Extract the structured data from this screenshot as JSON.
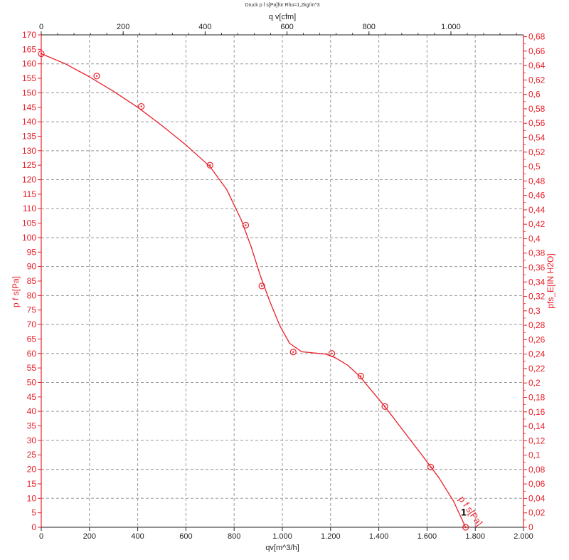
{
  "chart_data": {
    "type": "line",
    "title": "Druck p f s[Pa]für Rho=1,2kg/m^3",
    "xlabel": "qv[m^3/h]",
    "x2label": "q v[cfm]",
    "ylabel": "p f s[Pa]",
    "y2label": "pfs_E[IN H2O]",
    "xlim": [
      0,
      2000
    ],
    "x2lim": [
      0,
      1177.2
    ],
    "ylim": [
      0,
      170
    ],
    "y2lim": [
      0,
      0.6825
    ],
    "grid": true,
    "x_ticks": [
      "0",
      "200",
      "400",
      "600",
      "800",
      "1.000",
      "1.200",
      "1.400",
      "1.600",
      "1.800",
      "2.000"
    ],
    "x2_ticks": [
      "0",
      "200",
      "400",
      "600",
      "800",
      "1.000"
    ],
    "y_ticks": [
      "0",
      "5",
      "10",
      "15",
      "20",
      "25",
      "30",
      "35",
      "40",
      "45",
      "50",
      "55",
      "60",
      "65",
      "70",
      "75",
      "80",
      "85",
      "90",
      "95",
      "100",
      "105",
      "110",
      "115",
      "120",
      "125",
      "130",
      "135",
      "140",
      "145",
      "150",
      "155",
      "160",
      "165",
      "170"
    ],
    "y2_ticks": [
      "0",
      "0,02",
      "0,04",
      "0,06",
      "0,08",
      "0,1",
      "0,12",
      "0,14",
      "0,16",
      "0,18",
      "0,2",
      "0,22",
      "0,24",
      "0,26",
      "0,28",
      "0,3",
      "0,32",
      "0,34",
      "0,36",
      "0,38",
      "0,4",
      "0,42",
      "0,44",
      "0,46",
      "0,48",
      "0,5",
      "0,52",
      "0,54",
      "0,56",
      "0,58",
      "0,6",
      "0,62",
      "0,64",
      "0,66",
      "0,68"
    ],
    "series": [
      {
        "name": "p f s[Pa]",
        "color": "#e8202a",
        "markers": [
          {
            "x": 0,
            "y": 163.5
          },
          {
            "x": 230,
            "y": 155.8
          },
          {
            "x": 415,
            "y": 145.3
          },
          {
            "x": 700,
            "y": 125.0
          },
          {
            "x": 848,
            "y": 104.3
          },
          {
            "x": 915,
            "y": 83.3
          },
          {
            "x": 1045,
            "y": 60.5
          },
          {
            "x": 1205,
            "y": 60.0
          },
          {
            "x": 1325,
            "y": 52.2
          },
          {
            "x": 1425,
            "y": 41.7
          },
          {
            "x": 1615,
            "y": 20.8
          },
          {
            "x": 1760,
            "y": 0
          }
        ],
        "curve": [
          [
            0,
            163.5
          ],
          [
            100,
            160.0
          ],
          [
            200,
            155.5
          ],
          [
            300,
            150.5
          ],
          [
            400,
            145.0
          ],
          [
            500,
            138.7
          ],
          [
            600,
            132.0
          ],
          [
            700,
            124.5
          ],
          [
            770,
            116.5
          ],
          [
            830,
            106.0
          ],
          [
            870,
            97.0
          ],
          [
            910,
            86.5
          ],
          [
            950,
            77.5
          ],
          [
            990,
            69.5
          ],
          [
            1030,
            63.5
          ],
          [
            1080,
            60.6
          ],
          [
            1130,
            60.2
          ],
          [
            1180,
            59.8
          ],
          [
            1220,
            58.5
          ],
          [
            1270,
            56.0
          ],
          [
            1320,
            52.2
          ],
          [
            1370,
            47.2
          ],
          [
            1425,
            41.7
          ],
          [
            1500,
            33.5
          ],
          [
            1580,
            24.8
          ],
          [
            1650,
            17.0
          ],
          [
            1710,
            9.0
          ],
          [
            1760,
            0
          ]
        ]
      }
    ],
    "annotations": [
      {
        "text": "p f s[Pa]",
        "x": 1770,
        "y": 5
      }
    ]
  }
}
